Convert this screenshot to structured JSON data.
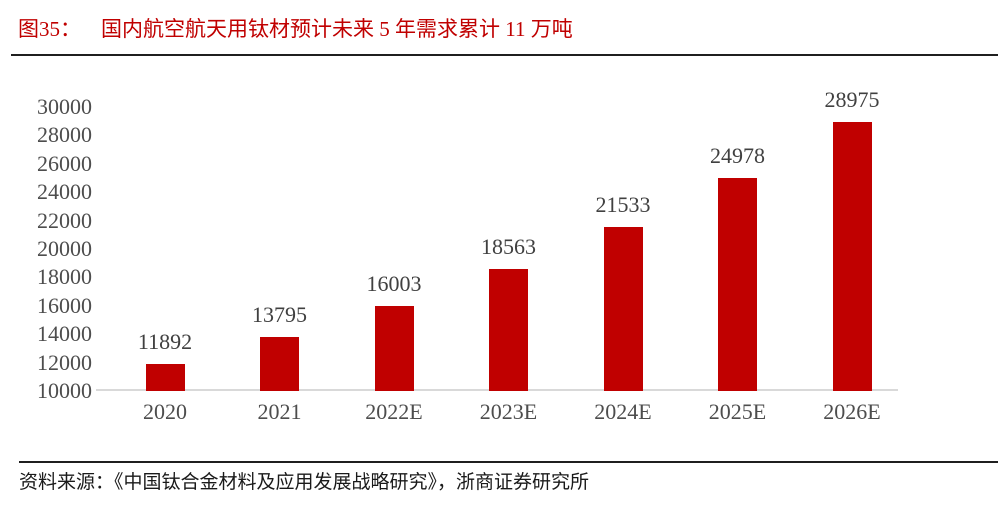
{
  "header": {
    "figure_label": "图35：",
    "accent_color": "#c00000"
  },
  "chart_data": {
    "type": "bar",
    "title": "国内航空航天用钛材预计未来 5 年需求累计 11 万吨",
    "categories": [
      "2020",
      "2021",
      "2022E",
      "2023E",
      "2024E",
      "2025E",
      "2026E"
    ],
    "values": [
      11892,
      13795,
      16003,
      18563,
      21533,
      24978,
      28975
    ],
    "value_labels": "on",
    "bar_color": "#c00000",
    "ylim": [
      10000,
      30000
    ],
    "ytick_step": 2000,
    "yticks": [
      10000,
      12000,
      14000,
      16000,
      18000,
      20000,
      22000,
      24000,
      26000,
      28000,
      30000
    ],
    "xlabel": "",
    "ylabel": "",
    "grid": "off",
    "legend": "none",
    "axis_line_color": "#d9d9d9",
    "label_color": "#404040"
  },
  "footer": {
    "source_text": "资料来源：《中国钛合金材料及应用发展战略研究》，浙商证券研究所"
  }
}
